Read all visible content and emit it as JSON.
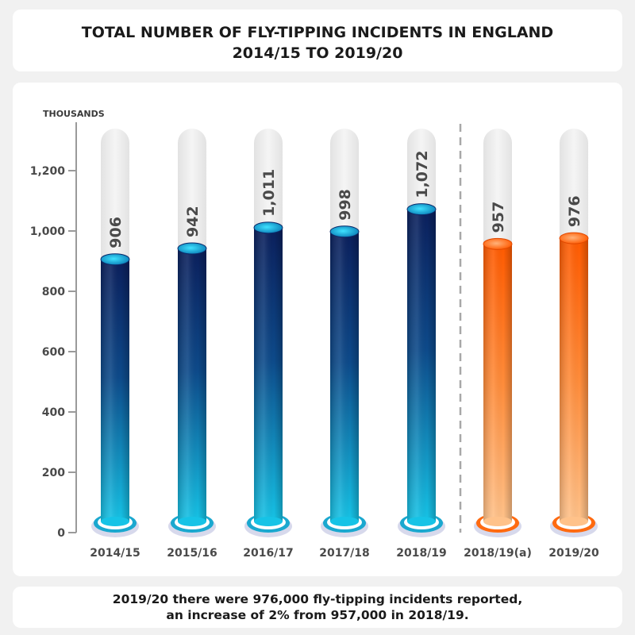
{
  "header": {
    "title_line1": "TOTAL NUMBER OF FLY-TIPPING INCIDENTS IN ENGLAND",
    "title_line2": "2014/15 TO 2019/20"
  },
  "footer": {
    "note_line1": "2019/20 there were 976,000 fly-tipping incidents reported,",
    "note_line2": "an increase of 2% from 957,000 in 2018/19."
  },
  "colors": {
    "navy_top": "#0b1f5c",
    "cyan_bottom": "#16c3e6",
    "orange_top": "#ff5a00",
    "orange_bottom": "#ffc28a",
    "track": "#e9e9e9",
    "axis": "#9a9a9a",
    "text_dark": "#3a3a3a"
  },
  "chart_data": {
    "type": "bar",
    "unit_label": "THOUSANDS",
    "categories": [
      "2014/15",
      "2015/16",
      "2016/17",
      "2017/18",
      "2018/19",
      "2018/19(a)",
      "2019/20"
    ],
    "values": [
      906,
      942,
      1011,
      998,
      1072,
      957,
      976
    ],
    "value_labels": [
      "906",
      "942",
      "1,011",
      "998",
      "1,072",
      "957",
      "976"
    ],
    "series_style": [
      "navy",
      "navy",
      "navy",
      "navy",
      "navy",
      "orange",
      "orange"
    ],
    "y_ticks": [
      0,
      200,
      400,
      600,
      800,
      1000,
      1200
    ],
    "y_tick_labels": [
      "0",
      "200",
      "400",
      "600",
      "800",
      "1,000",
      "1,200"
    ],
    "ylim": [
      0,
      1300
    ],
    "divider_after_index": 4,
    "grid": false
  }
}
